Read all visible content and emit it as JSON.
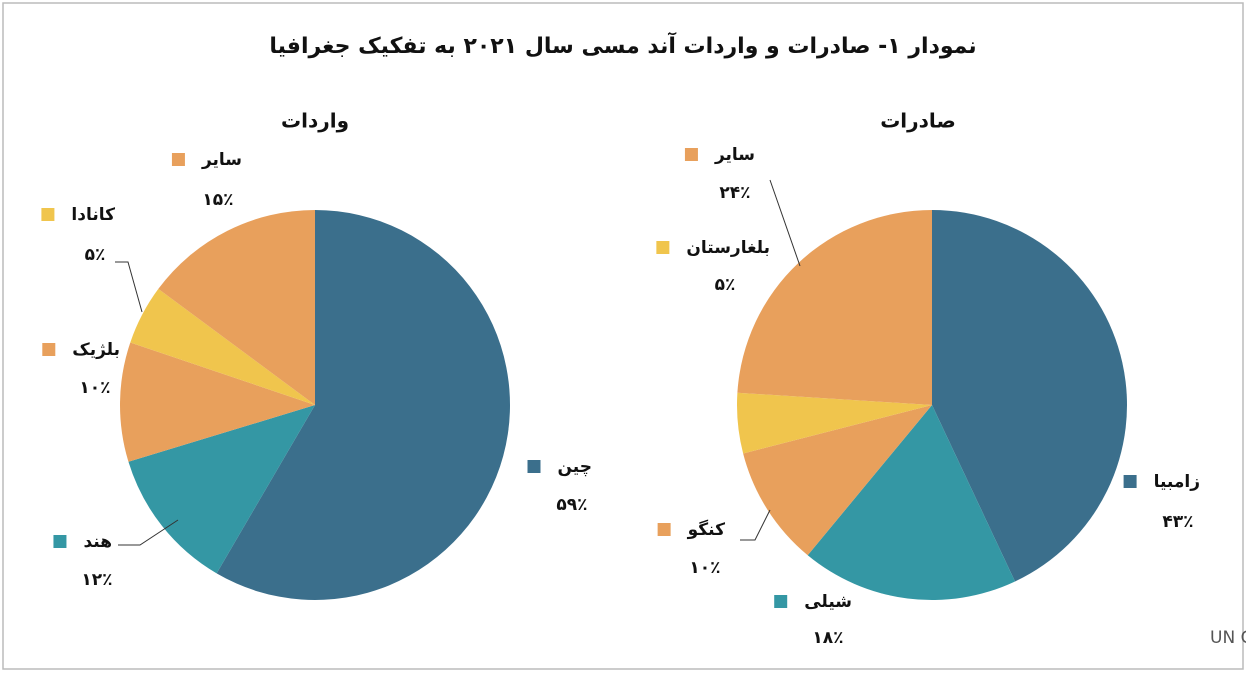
{
  "title": "نمودار ۱- صادرات و واردات آند مسی سال ۲۰۲۱ به تفکیک جغرافیا",
  "source": "منبع: UN Comtrade",
  "chart_data": [
    {
      "type": "pie",
      "title": "واردات",
      "categories": [
        "چین",
        "هند",
        "بلژیک",
        "کانادا",
        "سایر"
      ],
      "values": [
        59,
        12,
        10,
        5,
        15
      ],
      "value_labels": [
        "۵۹٪",
        "۱۲٪",
        "۱۰٪",
        "۵٪",
        "۱۵٪"
      ],
      "colors": [
        "#3b6f8c",
        "#3497a4",
        "#e8a05c",
        "#f0c54d",
        "#e8a05c"
      ]
    },
    {
      "type": "pie",
      "title": "صادرات",
      "categories": [
        "زامبیا",
        "شیلی",
        "کنگو",
        "بلغارستان",
        "سایر"
      ],
      "values": [
        43,
        18,
        10,
        5,
        24
      ],
      "value_labels": [
        "۴۳٪",
        "۱۸٪",
        "۱۰٪",
        "۵٪",
        "۲۴٪"
      ],
      "colors": [
        "#3b6f8c",
        "#3497a4",
        "#e8a05c",
        "#f0c54d",
        "#e8a05c"
      ]
    }
  ]
}
